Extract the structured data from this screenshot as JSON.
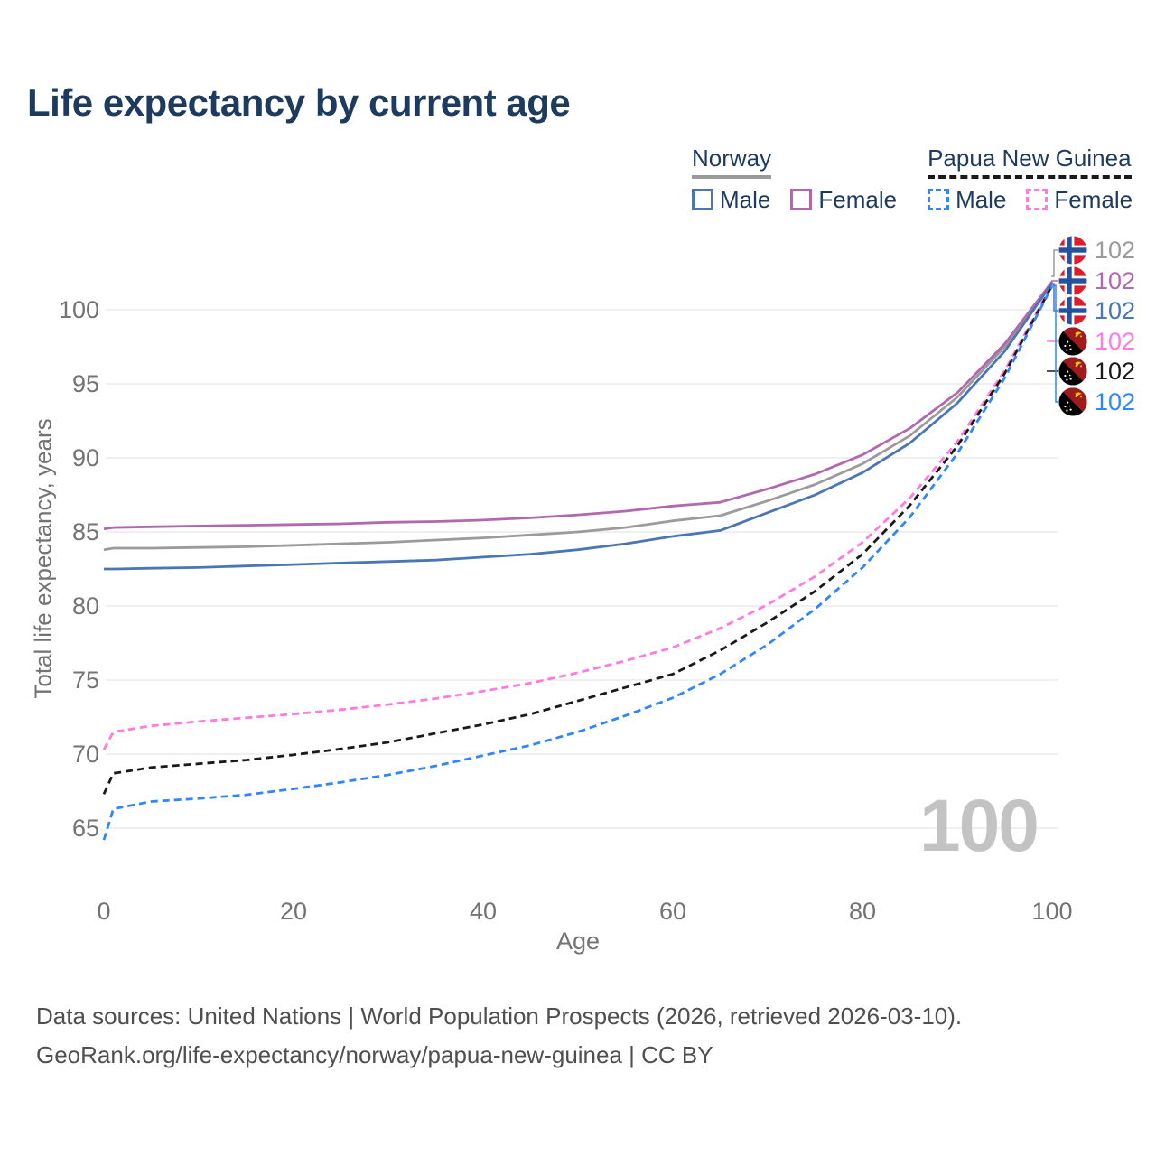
{
  "header": {
    "title": "Life expectancy by current age"
  },
  "legend": {
    "groups": [
      {
        "name": "Norway",
        "line_style": "solid",
        "underline_color": "#9b9b9b",
        "items": [
          {
            "label": "Male",
            "color": "#4a77b4",
            "dashed": false
          },
          {
            "label": "Female",
            "color": "#b168ae",
            "dashed": false
          }
        ]
      },
      {
        "name": "Papua New Guinea",
        "line_style": "dashed",
        "underline_color": "#1a1a1a",
        "items": [
          {
            "label": "Male",
            "color": "#2f86ff",
            "dashed": true
          },
          {
            "label": "Female",
            "color": "#ff7be0",
            "dashed": true
          }
        ]
      }
    ]
  },
  "chart_data": {
    "type": "line",
    "title": "Life expectancy by current age",
    "xlabel": "Age",
    "ylabel": "Total life expectancy, years",
    "xlim": [
      0,
      100
    ],
    "ylim": [
      63,
      103
    ],
    "xticks": [
      0,
      20,
      40,
      60,
      80,
      100
    ],
    "yticks": [
      65,
      70,
      75,
      80,
      85,
      90,
      95,
      100
    ],
    "grid": "horizontal",
    "age_counter": "100",
    "legend_position": "top-right",
    "ages": [
      0,
      1,
      5,
      10,
      15,
      20,
      25,
      30,
      35,
      40,
      45,
      50,
      55,
      60,
      65,
      70,
      75,
      80,
      85,
      90,
      95,
      100
    ],
    "series": [
      {
        "id": "norway-total",
        "name": "Norway Total",
        "country": "Norway",
        "flag": "norway",
        "color": "#9b9b9b",
        "dashed": false,
        "end_value": "102",
        "values": [
          83.8,
          83.9,
          83.9,
          83.95,
          84.0,
          84.1,
          84.2,
          84.3,
          84.45,
          84.6,
          84.8,
          85.0,
          85.3,
          85.75,
          86.1,
          87.1,
          88.2,
          89.6,
          91.5,
          94.1,
          97.5,
          101.85
        ]
      },
      {
        "id": "norway-female",
        "name": "Norway Female",
        "country": "Norway",
        "flag": "norway",
        "color": "#b168ae",
        "dashed": false,
        "end_value": "102",
        "values": [
          85.2,
          85.3,
          85.35,
          85.4,
          85.45,
          85.5,
          85.55,
          85.65,
          85.7,
          85.8,
          85.95,
          86.15,
          86.4,
          86.75,
          87.0,
          87.9,
          88.9,
          90.2,
          92.0,
          94.4,
          97.7,
          101.9
        ]
      },
      {
        "id": "norway-male",
        "name": "Norway Male",
        "country": "Norway",
        "flag": "norway",
        "color": "#4a77b4",
        "dashed": false,
        "end_value": "102",
        "values": [
          82.5,
          82.5,
          82.55,
          82.6,
          82.7,
          82.8,
          82.9,
          83.0,
          83.1,
          83.3,
          83.5,
          83.8,
          84.2,
          84.7,
          85.1,
          86.3,
          87.5,
          89.0,
          91.0,
          93.7,
          97.2,
          101.8
        ]
      },
      {
        "id": "png-female",
        "name": "Papua New Guinea Female",
        "country": "Papua New Guinea",
        "flag": "png",
        "color": "#ff7be0",
        "dashed": true,
        "end_value": "102",
        "values": [
          70.3,
          71.5,
          71.9,
          72.2,
          72.45,
          72.7,
          73.0,
          73.35,
          73.75,
          74.25,
          74.8,
          75.5,
          76.3,
          77.2,
          78.5,
          80.1,
          82.0,
          84.3,
          87.3,
          91.1,
          95.9,
          101.7
        ]
      },
      {
        "id": "png-total",
        "name": "Papua New Guinea Total",
        "country": "Papua New Guinea",
        "flag": "png",
        "color": "#1a1a1a",
        "dashed": true,
        "end_value": "102",
        "values": [
          67.3,
          68.7,
          69.1,
          69.35,
          69.6,
          69.95,
          70.35,
          70.8,
          71.4,
          72.0,
          72.7,
          73.6,
          74.5,
          75.4,
          77.0,
          78.9,
          81.0,
          83.5,
          86.8,
          90.8,
          95.7,
          101.65
        ]
      },
      {
        "id": "png-male",
        "name": "Papua New Guinea Male",
        "country": "Papua New Guinea",
        "flag": "png",
        "color": "#2f86ff",
        "dashed": true,
        "end_value": "102",
        "values": [
          64.2,
          66.3,
          66.8,
          67.0,
          67.25,
          67.65,
          68.1,
          68.6,
          69.2,
          69.9,
          70.6,
          71.5,
          72.6,
          73.8,
          75.4,
          77.4,
          79.8,
          82.6,
          86.0,
          90.3,
          95.4,
          101.6
        ]
      }
    ]
  },
  "footer": {
    "line1": "Data sources: United Nations | World Population Prospects (2026, retrieved 2026-03-10).",
    "line2": "GeoRank.org/life-expectancy/norway/papua-new-guinea | CC BY"
  }
}
